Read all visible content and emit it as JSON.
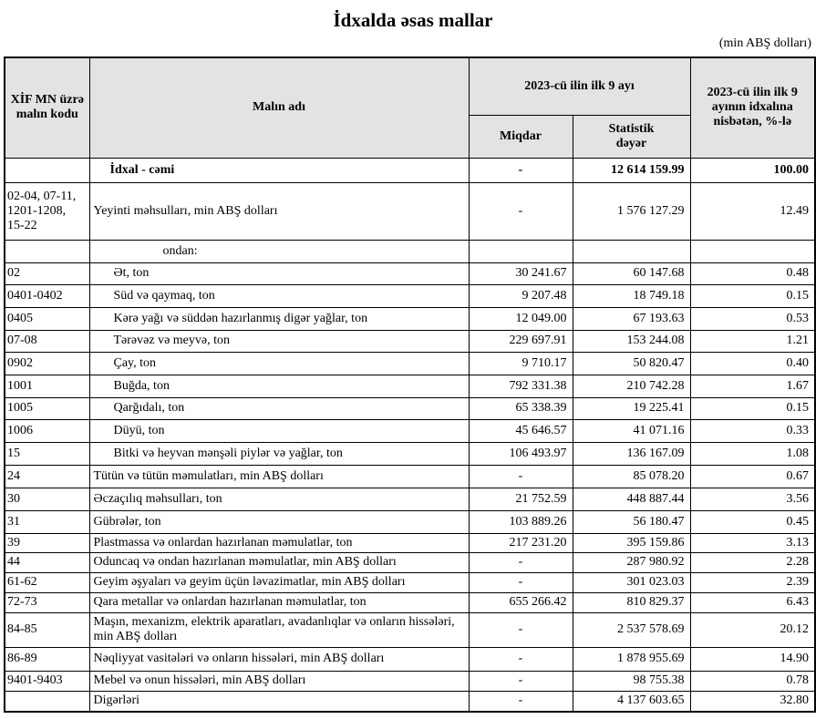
{
  "title": "İdxalda əsas mallar",
  "unit_note": "(min ABŞ dolları)",
  "headers": {
    "code": "XİF MN üzrə malın kodu",
    "name": "Malın adı",
    "period": "2023-cü ilin ilk 9 ayı",
    "quantity": "Miqdar",
    "value": "Statistik dəyər",
    "share": "2023-cü ilin ilk 9 ayının idxalına nisbətən, %-lə"
  },
  "total": {
    "code": "",
    "name": "İdxal - cəmi",
    "quantity": "-",
    "value": "12 614 159.99",
    "share": "100.00"
  },
  "food": {
    "code": "02-04, 07-11, 1201-1208, 15-22",
    "name": "Yeyinti məhsulları, min ABŞ dolları",
    "quantity": "-",
    "value": "1 576 127.29",
    "share": "12.49"
  },
  "of_which": "ondan:",
  "food_rows": [
    {
      "code": "02",
      "name": "Ət, ton",
      "quantity": "30 241.67",
      "value": "60 147.68",
      "share": "0.48"
    },
    {
      "code": "0401-0402",
      "name": "Süd və qaymaq, ton",
      "quantity": "9 207.48",
      "value": "18 749.18",
      "share": "0.15"
    },
    {
      "code": "0405",
      "name": "Kərə yağı və süddən hazırlanmış digər yağlar, ton",
      "quantity": "12 049.00",
      "value": "67 193.63",
      "share": "0.53"
    },
    {
      "code": "07-08",
      "name": "Tərəvəz və meyvə, ton",
      "quantity": "229 697.91",
      "value": "153 244.08",
      "share": "1.21"
    },
    {
      "code": "0902",
      "name": "Çay, ton",
      "quantity": "9 710.17",
      "value": "50 820.47",
      "share": "0.40"
    },
    {
      "code": "1001",
      "name": "Buğda, ton",
      "quantity": "792 331.38",
      "value": "210 742.28",
      "share": "1.67"
    },
    {
      "code": "1005",
      "name": "Qarğıdalı, ton",
      "quantity": "65 338.39",
      "value": "19 225.41",
      "share": "0.15"
    },
    {
      "code": "1006",
      "name": "Düyü, ton",
      "quantity": "45 646.57",
      "value": "41 071.16",
      "share": "0.33"
    },
    {
      "code": "15",
      "name": "Bitki və heyvan mənşəli piylər və yağlar, ton",
      "quantity": "106 493.97",
      "value": "136 167.09",
      "share": "1.08"
    }
  ],
  "rows": [
    {
      "code": "24",
      "name": "Tütün və tütün məmulatları, min ABŞ dolları",
      "quantity": "-",
      "value": "85 078.20",
      "share": "0.67"
    },
    {
      "code": "30",
      "name": "Əczaçılıq məhsulları, ton",
      "quantity": "21 752.59",
      "value": "448 887.44",
      "share": "3.56"
    },
    {
      "code": "31",
      "name": "Gübrələr, ton",
      "quantity": "103 889.26",
      "value": "56 180.47",
      "share": "0.45"
    },
    {
      "code": "39",
      "name": "Plastmassa və onlardan hazırlanan məmulatlar, ton",
      "quantity": "217 231.20",
      "value": "395 159.86",
      "share": "3.13"
    },
    {
      "code": "44",
      "name": "Oduncaq və ondan hazırlanan məmulatlar, min ABŞ dolları",
      "quantity": "-",
      "value": "287 980.92",
      "share": "2.28"
    },
    {
      "code": "61-62",
      "name": "Geyim əşyaları və geyim üçün ləvazimatlar, min ABŞ dolları",
      "quantity": "-",
      "value": "301 023.03",
      "share": "2.39"
    },
    {
      "code": "72-73",
      "name": "Qara metallar və onlardan hazırlanan məmulatlar, ton",
      "quantity": "655 266.42",
      "value": "810 829.37",
      "share": "6.43"
    },
    {
      "code": "84-85",
      "name": "Maşın, mexanizm, elektrik aparatları, avadanlıqlar və onların hissələri, min ABŞ dolları",
      "quantity": "-",
      "value": "2 537 578.69",
      "share": "20.12"
    },
    {
      "code": "86-89",
      "name": "Nəqliyyat vasitələri və onların hissələri, min ABŞ dolları",
      "quantity": "-",
      "value": "1 878 955.69",
      "share": "14.90"
    },
    {
      "code": "9401-9403",
      "name": "Mebel və onun hissələri, min ABŞ dolları",
      "quantity": "-",
      "value": "98 755.38",
      "share": "0.78"
    },
    {
      "code": "",
      "name": "Digərləri",
      "quantity": "-",
      "value": "4 137 603.65",
      "share": "32.80"
    }
  ]
}
